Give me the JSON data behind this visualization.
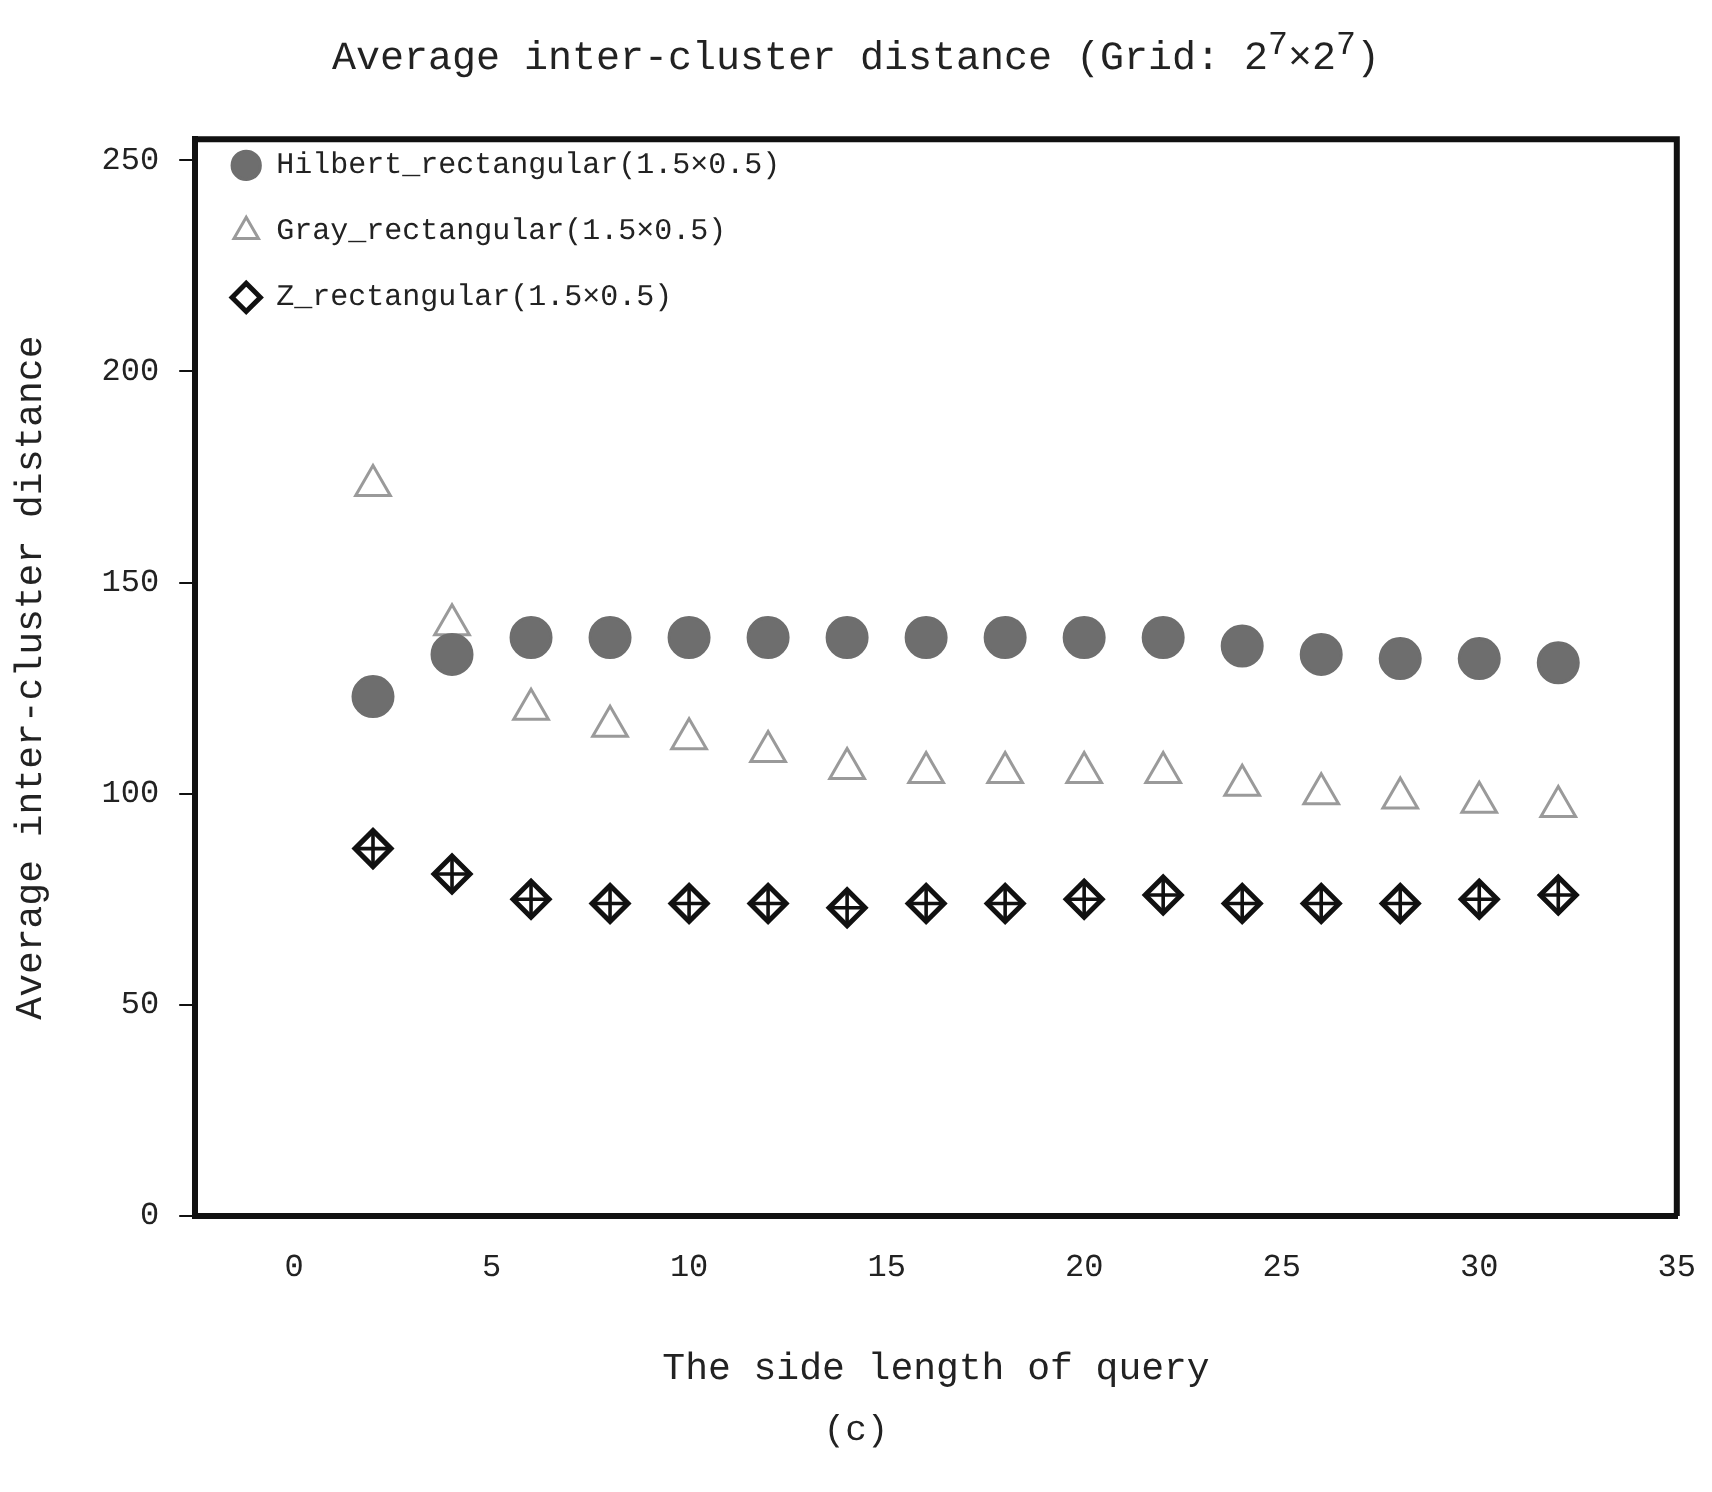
{
  "chart_data": {
    "type": "scatter",
    "title": "Average inter-cluster distance (Grid: 2$^{7}$×2$^{7}$)",
    "xlabel": "The side length of query",
    "ylabel": "Average inter-cluster distance",
    "annotations": [
      "(c)"
    ],
    "x": [
      2,
      4,
      6,
      8,
      10,
      12,
      14,
      16,
      18,
      20,
      22,
      24,
      26,
      28,
      30,
      32
    ],
    "series": [
      {
        "name": "Hilbert_rectangular(1.5×0.5)",
        "color": "#6e6e6e",
        "marker": "circle",
        "values": [
          123,
          133,
          137,
          137,
          137,
          137,
          137,
          137,
          137,
          137,
          137,
          135,
          133,
          132,
          132,
          131
        ]
      },
      {
        "name": "Gray_rectangular(1.5×0.5)",
        "color": "#9a9a9a",
        "marker": "triangle",
        "values": [
          173,
          140,
          120,
          116,
          113,
          110,
          106,
          105,
          105,
          105,
          105,
          102,
          100,
          99,
          98,
          97
        ]
      },
      {
        "name": "Z_rectangular(1.5×0.5)",
        "color": "#111111",
        "marker": "diamond",
        "values": [
          87,
          81,
          75,
          74,
          74,
          74,
          73,
          74,
          74,
          75,
          76,
          74,
          74,
          74,
          75,
          76
        ]
      }
    ],
    "xlim": [
      -2.5,
      35
    ],
    "xticks": [
      0,
      5,
      10,
      15,
      20,
      25,
      30,
      35
    ],
    "ylim": [
      0,
      255
    ],
    "yticks": [
      0,
      50,
      100,
      150,
      200,
      250
    ],
    "grid": false,
    "legend": "top left"
  }
}
